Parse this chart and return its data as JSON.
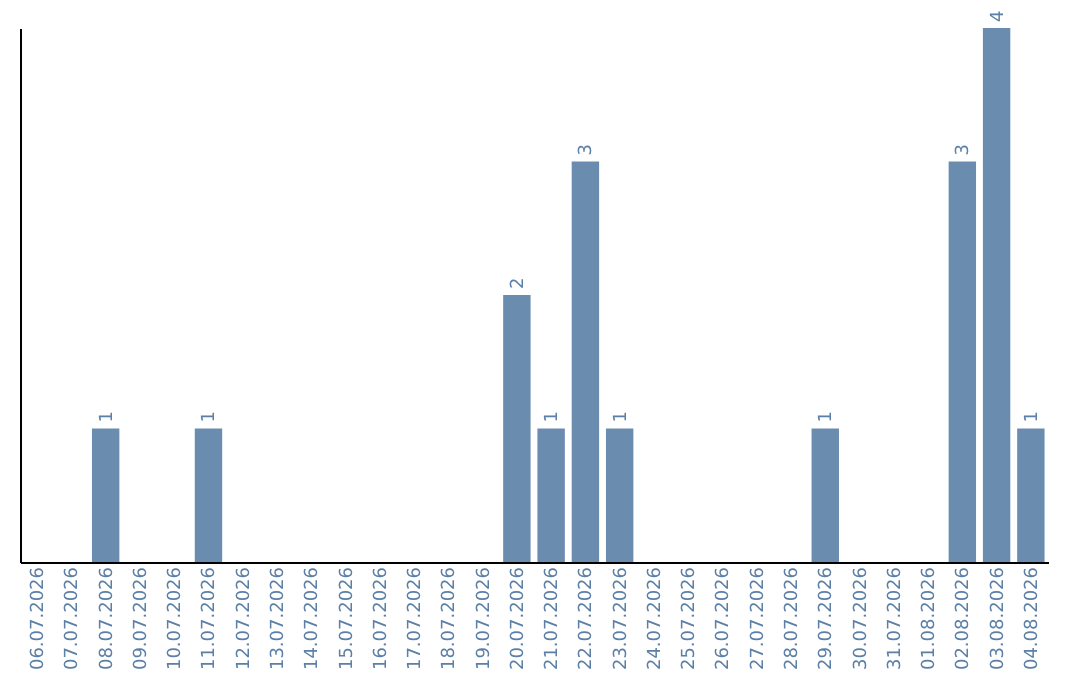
{
  "chart_data": {
    "type": "bar",
    "categories": [
      "06.07.2026",
      "07.07.2026",
      "08.07.2026",
      "09.07.2026",
      "10.07.2026",
      "11.07.2026",
      "12.07.2026",
      "13.07.2026",
      "14.07.2026",
      "15.07.2026",
      "16.07.2026",
      "17.07.2026",
      "18.07.2026",
      "19.07.2026",
      "20.07.2026",
      "21.07.2026",
      "22.07.2026",
      "23.07.2026",
      "24.07.2026",
      "25.07.2026",
      "26.07.2026",
      "27.07.2026",
      "28.07.2026",
      "29.07.2026",
      "30.07.2026",
      "31.07.2026",
      "01.08.2026",
      "02.08.2026",
      "03.08.2026",
      "04.08.2026"
    ],
    "values": [
      0,
      0,
      1,
      0,
      0,
      1,
      0,
      0,
      0,
      0,
      0,
      0,
      0,
      0,
      2,
      1,
      3,
      1,
      0,
      0,
      0,
      0,
      0,
      1,
      0,
      0,
      0,
      3,
      4,
      1
    ],
    "value_labels": [
      null,
      null,
      "1",
      null,
      null,
      "1",
      null,
      null,
      null,
      null,
      null,
      null,
      null,
      null,
      "2",
      "1",
      "3",
      "1",
      null,
      null,
      null,
      null,
      null,
      "1",
      null,
      null,
      null,
      "3",
      "4",
      "1"
    ],
    "color": "#6a8caf",
    "ylim": [
      0,
      4
    ],
    "tick_labels": "x",
    "grid": false
  }
}
